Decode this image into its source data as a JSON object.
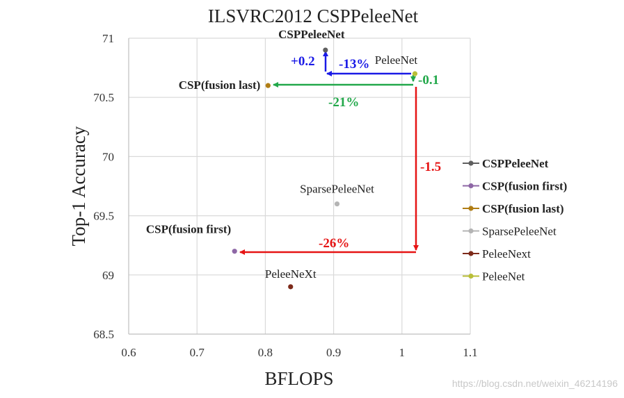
{
  "chart_data": {
    "type": "scatter",
    "title": "ILSVRC2012 CSPPeleeNet",
    "xlabel": "BFLOPS",
    "ylabel": "Top-1 Accuracy",
    "xlim": [
      0.6,
      1.1
    ],
    "ylim": [
      68.5,
      71
    ],
    "xticks": [
      0.6,
      0.7,
      0.8,
      0.9,
      1,
      1.1
    ],
    "xtick_labels": [
      "0.6",
      "0.7",
      "0.8",
      "0.9",
      "1",
      "1.1"
    ],
    "yticks": [
      68.5,
      69,
      69.5,
      70,
      70.5,
      71
    ],
    "ytick_labels": [
      "68.5",
      "69",
      "69.5",
      "70",
      "70.5",
      "71"
    ],
    "grid": true,
    "legend_position": "right",
    "series": [
      {
        "name": "CSPPeleeNet",
        "label": "CSPPeleeNet",
        "x": 0.888,
        "y": 70.9,
        "color": "#5f5f5f",
        "bold": true
      },
      {
        "name": "CSP(fusion first)",
        "label": "CSP(fusion first)",
        "x": 0.755,
        "y": 69.2,
        "color": "#8e67a6",
        "bold": true
      },
      {
        "name": "CSP(fusion last)",
        "label": "CSP(fusion last)",
        "x": 0.804,
        "y": 70.6,
        "color": "#b07d14",
        "bold": true
      },
      {
        "name": "SparsePeleeNet",
        "label": "SparsePeleeNet",
        "x": 0.905,
        "y": 69.6,
        "color": "#b4b4b4",
        "bold": false
      },
      {
        "name": "PeleeNext",
        "label": "PeleeNeXt",
        "x": 0.837,
        "y": 68.9,
        "color": "#7d2a1a",
        "bold": false
      },
      {
        "name": "PeleeNet",
        "label": "PeleeNet",
        "x": 1.019,
        "y": 70.7,
        "color": "#b9bf38",
        "bold": false
      }
    ],
    "annotations": [
      {
        "text": "+0.2",
        "color": "#1a1ae6"
      },
      {
        "text": "-13%",
        "color": "#1a1ae6"
      },
      {
        "text": "-0.1",
        "color": "#22a84a"
      },
      {
        "text": "-21%",
        "color": "#22a84a"
      },
      {
        "text": "-1.5",
        "color": "#e61414"
      },
      {
        "text": "-26%",
        "color": "#e61414"
      }
    ]
  },
  "watermark": "https://blog.csdn.net/weixin_46214196"
}
